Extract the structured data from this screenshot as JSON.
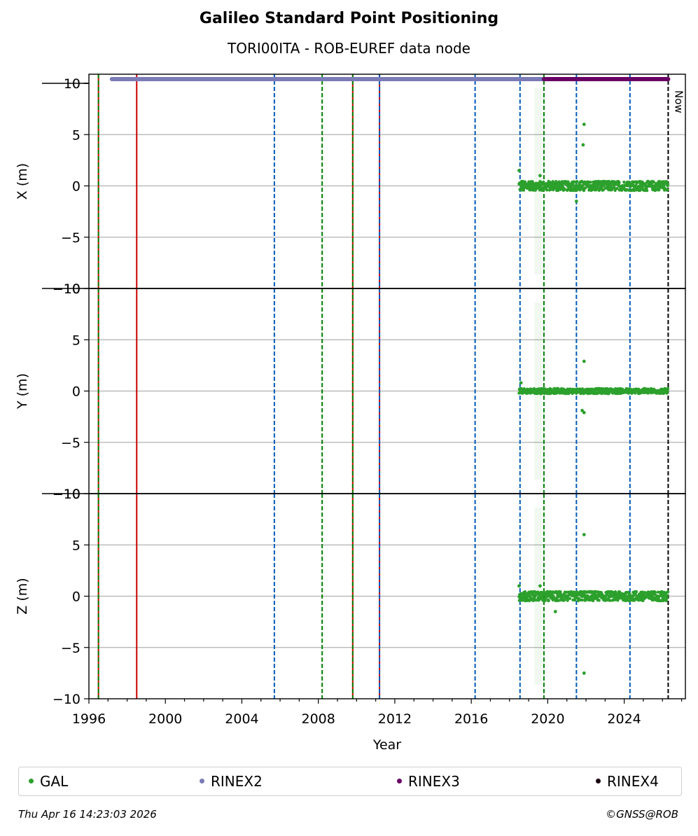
{
  "title": "Galileo Standard Point Positioning",
  "subtitle": "TORI00ITA - ROB-EUREF data node",
  "now_label": "Now",
  "footer": {
    "timestamp": "Thu Apr 16 14:23:03 2026",
    "credit": "©GNSS@ROB"
  },
  "legend": [
    {
      "label": "GAL",
      "color": "#2ca02c"
    },
    {
      "label": "RINEX2",
      "color": "#7b7bb8"
    },
    {
      "label": "RINEX3",
      "color": "#6a0065"
    },
    {
      "label": "RINEX4",
      "color": "#1a0010"
    }
  ],
  "chart_data": {
    "type": "scatter",
    "xlabel": "Year",
    "xlim": [
      1996,
      2027.2
    ],
    "x_ticks": [
      1996,
      2000,
      2004,
      2008,
      2012,
      2016,
      2020,
      2024
    ],
    "grid": true,
    "legend_position": "bottom",
    "panels": [
      {
        "ylabel": "X (m)",
        "ylim": [
          -10,
          10.8
        ],
        "y_ticks": [
          10,
          5,
          0,
          -5,
          -10
        ],
        "outliers": [
          [
            2021.9,
            6
          ],
          [
            2021.85,
            4
          ],
          [
            2018.5,
            1.5
          ],
          [
            2019.6,
            1
          ],
          [
            2021.5,
            -1.5
          ]
        ]
      },
      {
        "ylabel": "Y (m)",
        "ylim": [
          -10,
          10
        ],
        "y_ticks": [
          -10,
          5,
          0,
          -5,
          -10
        ],
        "outliers": [
          [
            2021.9,
            2.9
          ],
          [
            2021.8,
            -1.9
          ],
          [
            2021.9,
            -2.1
          ],
          [
            2018.6,
            0.8
          ]
        ]
      },
      {
        "ylabel": "Z (m)",
        "ylim": [
          -10,
          10
        ],
        "y_ticks": [
          -10,
          5,
          0,
          -5,
          -10
        ],
        "outliers": [
          [
            2021.9,
            6
          ],
          [
            2021.9,
            -7.5
          ],
          [
            2018.5,
            1
          ],
          [
            2019.6,
            1
          ],
          [
            2020.4,
            -1.5
          ]
        ]
      }
    ],
    "series": [
      {
        "name": "GAL",
        "color": "#2ca02c",
        "x_range": [
          2018.5,
          2026.3
        ],
        "typical_range_m": [
          -0.4,
          0.4
        ]
      },
      {
        "name": "RINEX2",
        "color": "#7b7bb8",
        "x_range": [
          1997.2,
          2019.8
        ]
      },
      {
        "name": "RINEX3",
        "color": "#6a0065",
        "x_range": [
          2019.8,
          2026.3
        ]
      },
      {
        "name": "RINEX4",
        "color": "#1a0010",
        "x_range": []
      }
    ],
    "event_lines": [
      {
        "x": 1996.5,
        "color": "#cc0000",
        "style": "solid"
      },
      {
        "x": 1996.5,
        "color": "#008000",
        "style": "dashed"
      },
      {
        "x": 1998.5,
        "color": "#cc0000",
        "style": "solid"
      },
      {
        "x": 2005.7,
        "color": "#005bbb",
        "style": "dashed"
      },
      {
        "x": 2008.2,
        "color": "#008000",
        "style": "dashed"
      },
      {
        "x": 2009.8,
        "color": "#cc0000",
        "style": "solid"
      },
      {
        "x": 2009.8,
        "color": "#008000",
        "style": "dashed"
      },
      {
        "x": 2011.2,
        "color": "#cc0000",
        "style": "solid"
      },
      {
        "x": 2011.2,
        "color": "#005bbb",
        "style": "dashed"
      },
      {
        "x": 2016.2,
        "color": "#005bbb",
        "style": "dashed"
      },
      {
        "x": 2018.55,
        "color": "#005bbb",
        "style": "dashed"
      },
      {
        "x": 2019.8,
        "color": "#008000",
        "style": "dashed"
      },
      {
        "x": 2021.5,
        "color": "#005bbb",
        "style": "dashed"
      },
      {
        "x": 2024.3,
        "color": "#005bbb",
        "style": "dashed"
      },
      {
        "x": 2026.3,
        "color": "#000000",
        "style": "dashed"
      }
    ]
  }
}
